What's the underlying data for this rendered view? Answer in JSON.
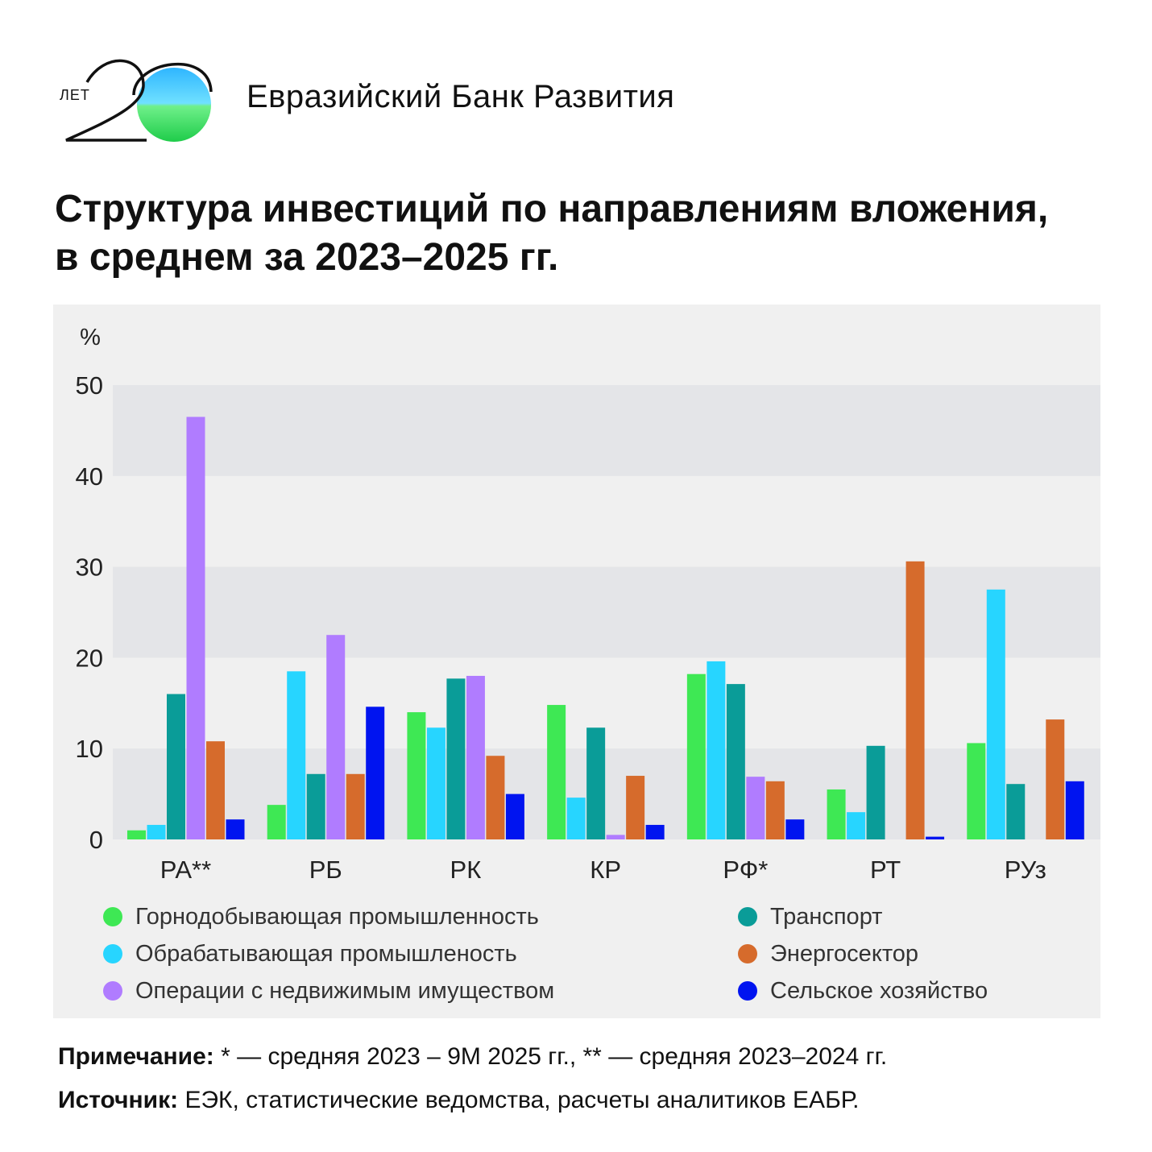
{
  "header": {
    "logo_text_small": "ЛЕТ",
    "logo_number": "20",
    "org_name": "Евразийский Банк Развития"
  },
  "title": {
    "line1": "Структура инвестиций по направлениям вложения,",
    "line2": "в среднем за 2023–2025 гг."
  },
  "colors": {
    "mining": "#3ee854",
    "manufacturing": "#27d5ff",
    "transport": "#0a9c98",
    "real_estate": "#b07cff",
    "energy": "#d66b2c",
    "agriculture": "#0014f0",
    "panel_bg": "#f0f0f0",
    "band_bg": "#e4e5e8"
  },
  "chart_data": {
    "type": "bar",
    "title": "Структура инвестиций по направлениям вложения, в среднем за 2023–2025 гг.",
    "ylabel": "%",
    "xlabel": "",
    "ylim": [
      0,
      50
    ],
    "yticks": [
      0,
      10,
      20,
      30,
      40,
      50
    ],
    "grid": "alternating horizontal bands",
    "categories": [
      "РА**",
      "РБ",
      "РК",
      "КР",
      "РФ*",
      "РТ",
      "РУз"
    ],
    "series": [
      {
        "name": "Горнодобывающая промышленность",
        "color": "#3ee854",
        "values": [
          1.0,
          3.8,
          14.0,
          14.8,
          18.2,
          5.5,
          10.6
        ]
      },
      {
        "name": "Обрабатывающая промышленость",
        "color": "#27d5ff",
        "values": [
          1.6,
          18.5,
          12.3,
          4.6,
          19.6,
          3.0,
          27.5
        ]
      },
      {
        "name": "Транспорт",
        "color": "#0a9c98",
        "values": [
          16.0,
          7.2,
          17.7,
          12.3,
          17.1,
          10.3,
          6.1
        ]
      },
      {
        "name": "Операции с недвижимым имуществом",
        "color": "#b07cff",
        "values": [
          46.5,
          22.5,
          18.0,
          0.5,
          6.9,
          0,
          0
        ]
      },
      {
        "name": "Энергосектор",
        "color": "#d66b2c",
        "values": [
          10.8,
          7.2,
          9.2,
          7.0,
          6.4,
          30.6,
          13.2
        ]
      },
      {
        "name": "Сельское хозяйство",
        "color": "#0014f0",
        "values": [
          2.2,
          14.6,
          5.0,
          1.6,
          2.2,
          0.3,
          6.4
        ]
      }
    ],
    "legend": "bottom, two columns"
  },
  "legend": {
    "items": [
      {
        "label": "Горнодобывающая промышленность",
        "color": "#3ee854"
      },
      {
        "label": "Транспорт",
        "color": "#0a9c98"
      },
      {
        "label": "Обрабатывающая промышленость",
        "color": "#27d5ff"
      },
      {
        "label": "Энергосектор",
        "color": "#d66b2c"
      },
      {
        "label": "Операции с недвижимым имуществом",
        "color": "#b07cff"
      },
      {
        "label": "Сельское хозяйство",
        "color": "#0014f0"
      }
    ]
  },
  "notes": {
    "note_label": "Примечание:",
    "note_text": " * — средняя 2023 – 9М 2025 гг., ** — средняя 2023–2024 гг.",
    "source_label": "Источник:",
    "source_text": " ЕЭК, статистические ведомства, расчеты аналитиков ЕАБР."
  }
}
